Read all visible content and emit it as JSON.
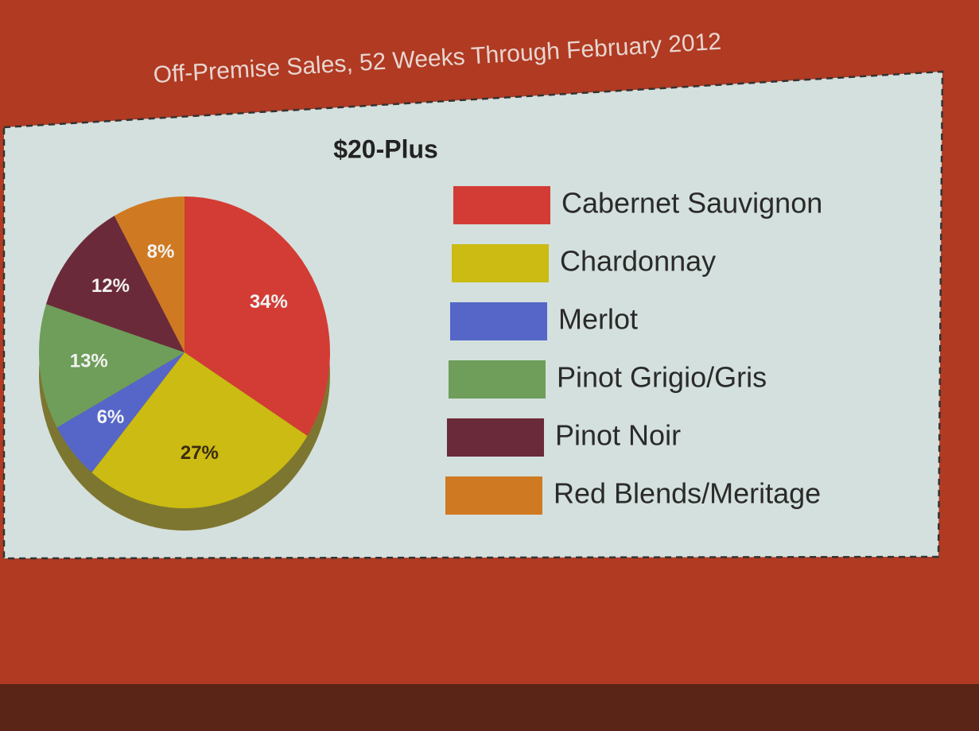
{
  "chart_data": {
    "type": "pie",
    "title": "Off-Premise Sales, 52 Weeks Through February 2012",
    "subtitle": "$20-Plus",
    "categories": [
      "Cabernet Sauvignon",
      "Chardonnay",
      "Merlot",
      "Pinot Grigio/Gris",
      "Pinot Noir",
      "Red Blends/Meritage"
    ],
    "values": [
      34,
      27,
      6,
      13,
      12,
      8
    ],
    "value_labels": [
      "34%",
      "27%",
      "6%",
      "13%",
      "12%",
      "8%"
    ],
    "colors": [
      "#d33c34",
      "#cbbb12",
      "#5566c8",
      "#6e9e5a",
      "#6b2a3a",
      "#cf7a22"
    ],
    "legend": "right"
  }
}
